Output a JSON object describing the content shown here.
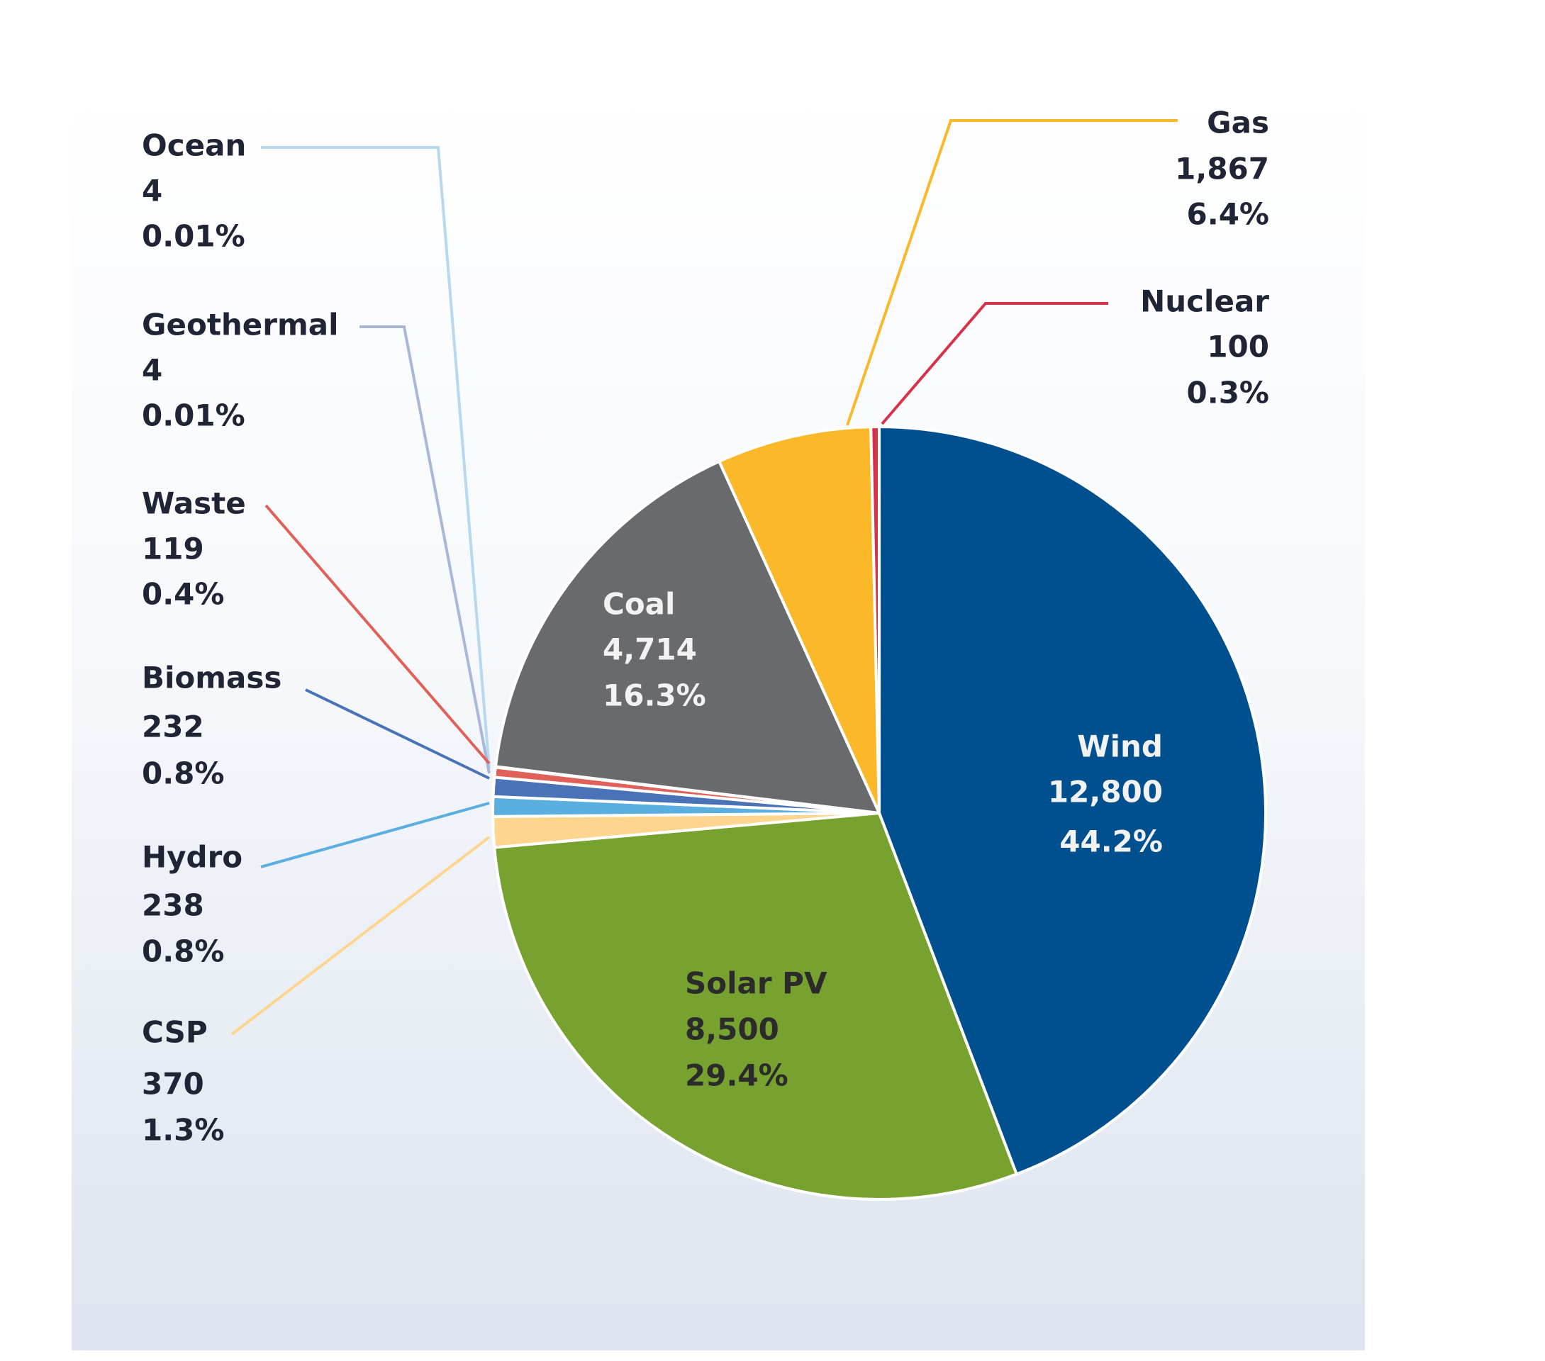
{
  "chart_data": {
    "type": "pie",
    "title": "",
    "start": "12 o'clock, clockwise",
    "slices": [
      {
        "label": "Wind",
        "value": 12800,
        "value_text": "12,800",
        "percent_text": "44.2%",
        "color": "#00508f"
      },
      {
        "label": "Solar PV",
        "value": 8500,
        "value_text": "8,500",
        "percent_text": "29.4%",
        "color": "#78a22f"
      },
      {
        "label": "CSP",
        "value": 370,
        "value_text": "370",
        "percent_text": "1.3%",
        "color": "#fdd58e"
      },
      {
        "label": "Hydro",
        "value": 238,
        "value_text": "238",
        "percent_text": "0.8%",
        "color": "#5aaee0"
      },
      {
        "label": "Biomass",
        "value": 232,
        "value_text": "232",
        "percent_text": "0.8%",
        "color": "#4a72b8"
      },
      {
        "label": "Waste",
        "value": 119,
        "value_text": "119",
        "percent_text": "0.4%",
        "color": "#e0605a"
      },
      {
        "label": "Geothermal",
        "value": 4,
        "value_text": "4",
        "percent_text": "0.01%",
        "color": "#a9b8d8"
      },
      {
        "label": "Ocean",
        "value": 4,
        "value_text": "4",
        "percent_text": "0.01%",
        "color": "#b8d8f0"
      },
      {
        "label": "Coal",
        "value": 4714,
        "value_text": "4,714",
        "percent_text": "16.3%",
        "color": "#696a6d"
      },
      {
        "label": "Gas",
        "value": 1867,
        "value_text": "1,867",
        "percent_text": "6.4%",
        "color": "#fbb829"
      },
      {
        "label": "Nuclear",
        "value": 100,
        "value_text": "100",
        "percent_text": "0.3%",
        "color": "#d6334a"
      }
    ]
  }
}
